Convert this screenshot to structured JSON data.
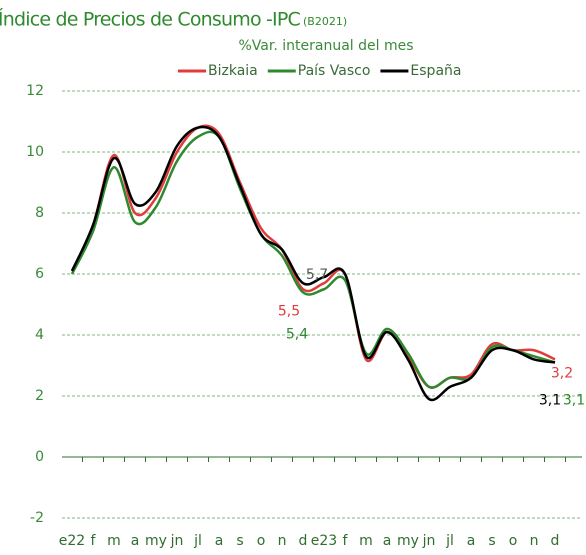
{
  "chart_data": {
    "type": "line",
    "title": "Índice de Precios de Consumo -IPC",
    "title_note": "(B2021)",
    "subtitle": "%Var. interanual del mes",
    "categories": [
      "e22",
      "f",
      "m",
      "a",
      "my",
      "jn",
      "jl",
      "a",
      "s",
      "o",
      "n",
      "d",
      "e23",
      "f",
      "m",
      "a",
      "my",
      "jn",
      "jl",
      "a",
      "s",
      "o",
      "n",
      "d"
    ],
    "series": [
      {
        "name": "Bizkaia",
        "color": "#e03c3c",
        "values": [
          6.1,
          7.6,
          9.9,
          8.0,
          8.5,
          10.0,
          10.8,
          10.6,
          9.0,
          7.5,
          6.8,
          5.5,
          5.7,
          6.0,
          3.2,
          4.1,
          3.3,
          2.3,
          2.6,
          2.7,
          3.7,
          3.5,
          3.5,
          3.2
        ],
        "value_labels": [
          null,
          null,
          null,
          null,
          null,
          null,
          null,
          null,
          null,
          null,
          null,
          "5,5",
          null,
          null,
          null,
          null,
          null,
          null,
          null,
          null,
          null,
          null,
          null,
          "3,2"
        ]
      },
      {
        "name": "País Vasco",
        "color": "#2e8a2e",
        "values": [
          6.0,
          7.4,
          9.5,
          7.7,
          8.2,
          9.7,
          10.5,
          10.5,
          8.8,
          7.3,
          6.6,
          5.4,
          5.5,
          5.8,
          3.4,
          4.2,
          3.4,
          2.3,
          2.6,
          2.6,
          3.6,
          3.5,
          3.3,
          3.1
        ],
        "value_labels": [
          null,
          null,
          null,
          null,
          null,
          null,
          null,
          null,
          null,
          null,
          null,
          "5,4",
          null,
          null,
          null,
          null,
          null,
          null,
          null,
          null,
          null,
          null,
          null,
          "3,1"
        ]
      },
      {
        "name": "España",
        "color": "#000000",
        "values": [
          6.1,
          7.6,
          9.8,
          8.3,
          8.7,
          10.2,
          10.8,
          10.5,
          8.9,
          7.3,
          6.8,
          5.7,
          5.9,
          6.0,
          3.3,
          4.1,
          3.2,
          1.9,
          2.3,
          2.6,
          3.5,
          3.5,
          3.2,
          3.1
        ],
        "value_labels": [
          null,
          null,
          null,
          null,
          null,
          null,
          null,
          null,
          null,
          null,
          null,
          "5,7",
          null,
          null,
          null,
          null,
          null,
          null,
          null,
          null,
          null,
          null,
          null,
          "3,1"
        ]
      }
    ],
    "ylim": [
      -2,
      12
    ],
    "yticks": [
      -2,
      0,
      2,
      4,
      6,
      8,
      10,
      12
    ],
    "grid": true,
    "legend": "top"
  }
}
